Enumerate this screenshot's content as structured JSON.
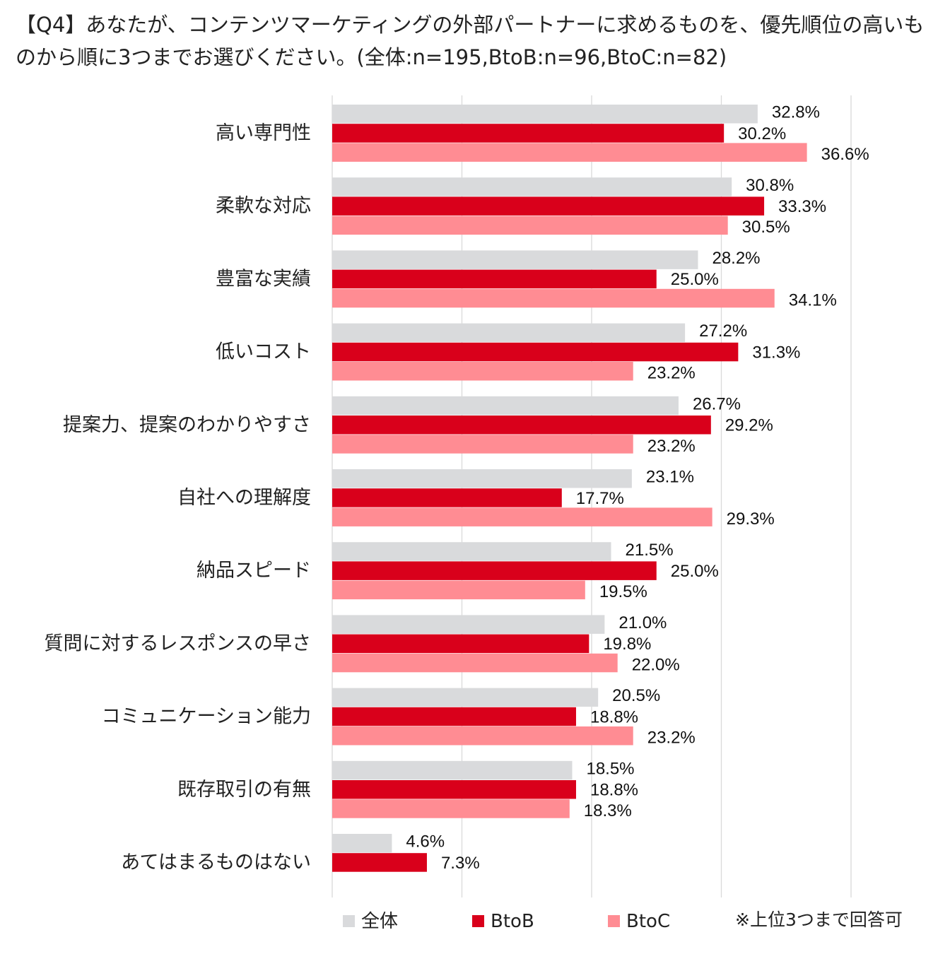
{
  "title": "【Q4】あなたが、コンテンツマーケティングの外部パートナーに求めるものを、優先順位の高いものから順に3つまでお選びください。(全体:n=195,BtoB:n=96,BtoC:n=82)",
  "footnote": "※上位3つまで回答可",
  "chart_data": {
    "type": "bar",
    "orientation": "horizontal",
    "categories": [
      "高い専門性",
      "柔軟な対応",
      "豊富な実績",
      "低いコスト",
      "提案力、提案のわかりやすさ",
      "自社への理解度",
      "納品スピード",
      "質問に対するレスポンスの早さ",
      "コミュニケーション能力",
      "既存取引の有無",
      "あてはまるものはない"
    ],
    "series": [
      {
        "name": "全体",
        "color": "#d9dadc",
        "values": [
          32.8,
          30.8,
          28.2,
          27.2,
          26.7,
          23.1,
          21.5,
          21.0,
          20.5,
          18.5,
          4.6
        ],
        "labels": [
          "32.8%",
          "30.8%",
          "28.2%",
          "27.2%",
          "26.7%",
          "23.1%",
          "21.5%",
          "21.0%",
          "20.5%",
          "18.5%",
          "4.6%"
        ]
      },
      {
        "name": "BtoB",
        "color": "#d9001b",
        "values": [
          30.2,
          33.3,
          25.0,
          31.3,
          29.2,
          17.7,
          25.0,
          19.8,
          18.8,
          18.8,
          7.3
        ],
        "labels": [
          "30.2%",
          "33.3%",
          "25.0%",
          "31.3%",
          "29.2%",
          "17.7%",
          "25.0%",
          "19.8%",
          "18.8%",
          "18.8%",
          "7.3%"
        ]
      },
      {
        "name": "BtoC",
        "color": "#ff8c93",
        "values": [
          36.6,
          30.5,
          34.1,
          23.2,
          23.2,
          29.3,
          19.5,
          22.0,
          23.2,
          18.3,
          null
        ],
        "labels": [
          "36.6%",
          "30.5%",
          "34.1%",
          "23.2%",
          "23.2%",
          "29.3%",
          "19.5%",
          "22.0%",
          "23.2%",
          "18.3%",
          null
        ]
      }
    ],
    "xlim": [
      0,
      40
    ],
    "grid": true,
    "legend_position": "bottom"
  }
}
